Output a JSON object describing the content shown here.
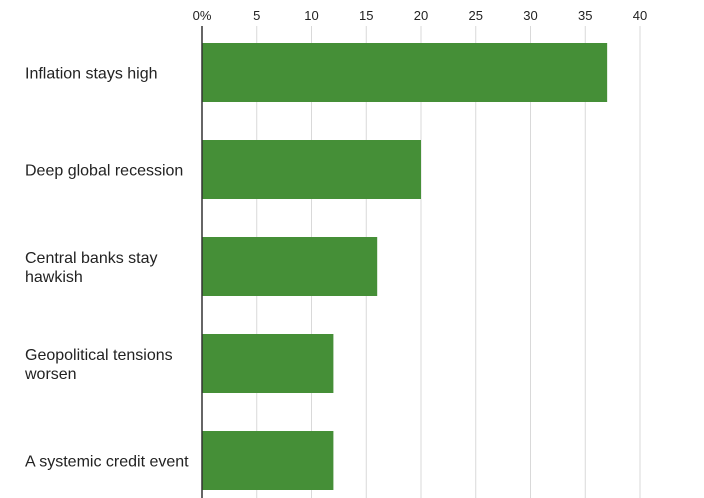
{
  "chart_data": {
    "type": "bar",
    "orientation": "horizontal",
    "categories": [
      [
        "Inflation stays high"
      ],
      [
        "Deep global recession"
      ],
      [
        "Central banks stay",
        "hawkish"
      ],
      [
        "Geopolitical tensions",
        "worsen"
      ],
      [
        "A systemic credit event"
      ]
    ],
    "values": [
      37,
      20,
      16,
      12,
      12
    ],
    "xticks": [
      "0%",
      "5",
      "10",
      "15",
      "20",
      "25",
      "30",
      "35",
      "40"
    ],
    "xlim": [
      0,
      40
    ],
    "grid": true,
    "axis_position": "top",
    "bar_color": "#458f37"
  }
}
